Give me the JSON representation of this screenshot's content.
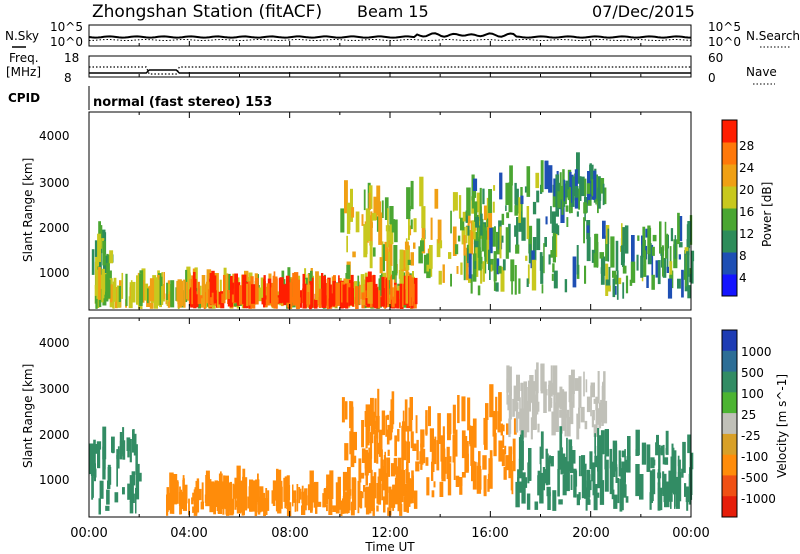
{
  "header": {
    "title": "Zhongshan Station (fitACF)",
    "beam": "Beam 15",
    "date": "07/Dec/2015"
  },
  "status_panels": {
    "noise_left_label": "N.Sky",
    "noise_left_ticks": [
      "10^5",
      "10^0"
    ],
    "noise_right_ticks": [
      "10^5",
      "10^0"
    ],
    "noise_right_label": "N.Search",
    "freq_label": "Freq.",
    "freq_unit": "[MHz]",
    "freq_ticks": [
      "18",
      "8"
    ],
    "nave_ticks": [
      "60",
      "0"
    ],
    "nave_label": "Nave",
    "cpid_label": "CPID",
    "cpid_text": "normal (fast stereo) 153"
  },
  "power_panel": {
    "ylabel": "Slant Range [km]",
    "yticks": [
      "4000",
      "3000",
      "2000",
      "1000"
    ],
    "colorbar_label": "Power [dB]",
    "colorbar_ticks": [
      "28",
      "24",
      "20",
      "16",
      "12",
      "8",
      "4"
    ],
    "colors": [
      "#1414ff",
      "#1e4fb4",
      "#2d8c5a",
      "#4aa632",
      "#c8c81e",
      "#f0a014",
      "#ff780a",
      "#ff1e00"
    ]
  },
  "velocity_panel": {
    "ylabel": "Slant Range [km]",
    "yticks": [
      "4000",
      "3000",
      "2000",
      "1000"
    ],
    "colorbar_label": "Velocity [m s^-1]",
    "colorbar_ticks": [
      "1000",
      "500",
      "100",
      "25",
      "-25",
      "-100",
      "-500",
      "-1000"
    ],
    "colors": [
      "#1e3cb4",
      "#2d6e96",
      "#328c64",
      "#4cb432",
      "#c0c0b8",
      "#d8a028",
      "#ff8c0a",
      "#f05014",
      "#e61e0a"
    ]
  },
  "xaxis": {
    "label": "Time UT",
    "ticks": [
      "00:00",
      "04:00",
      "08:00",
      "12:00",
      "16:00",
      "20:00",
      "00:00"
    ]
  },
  "chart_data": [
    {
      "type": "heatmap",
      "title": "Power",
      "xlabel": "Time UT",
      "ylabel": "Slant Range [km]",
      "x_range_hours": [
        0,
        24
      ],
      "y_range_km": [
        180,
        4600
      ],
      "colorbar": {
        "label": "Power [dB]",
        "range": [
          0,
          30
        ],
        "ticks": [
          4,
          8,
          12,
          16,
          20,
          24,
          28
        ]
      },
      "echo_regions": [
        {
          "t_start": 0.0,
          "t_end": 1.0,
          "r_min": 400,
          "r_max": 1600,
          "value": 14
        },
        {
          "t_start": 0.2,
          "t_end": 13.0,
          "r_min": 200,
          "r_max": 450,
          "value": 18
        },
        {
          "t_start": 4.0,
          "t_end": 13.0,
          "r_min": 200,
          "r_max": 350,
          "value": 28
        },
        {
          "t_start": 10.0,
          "t_end": 16.0,
          "r_min": 700,
          "r_max": 2500,
          "value": 18
        },
        {
          "t_start": 15.0,
          "t_end": 20.0,
          "r_min": 500,
          "r_max": 3000,
          "value": 12
        },
        {
          "t_start": 18.5,
          "t_end": 20.5,
          "r_min": 2300,
          "r_max": 2800,
          "value": 10
        },
        {
          "t_start": 20.0,
          "t_end": 24.0,
          "r_min": 400,
          "r_max": 1800,
          "value": 12
        }
      ]
    },
    {
      "type": "heatmap",
      "title": "Velocity",
      "xlabel": "Time UT",
      "ylabel": "Slant Range [km]",
      "x_range_hours": [
        0,
        24
      ],
      "y_range_km": [
        180,
        4600
      ],
      "colorbar": {
        "label": "Velocity [m s^-1]",
        "ticks": [
          1000,
          500,
          100,
          25,
          -25,
          -100,
          -500,
          -1000
        ]
      },
      "echo_regions": [
        {
          "t_start": 0.0,
          "t_end": 2.0,
          "r_min": 200,
          "r_max": 1700,
          "value": 150
        },
        {
          "t_start": 3.0,
          "t_end": 13.0,
          "r_min": 200,
          "r_max": 600,
          "value": -400
        },
        {
          "t_start": 10.0,
          "t_end": 17.0,
          "r_min": 600,
          "r_max": 2400,
          "value": -300
        },
        {
          "t_start": 16.5,
          "t_end": 20.5,
          "r_min": 1900,
          "r_max": 3000,
          "value": 0
        },
        {
          "t_start": 17.0,
          "t_end": 24.0,
          "r_min": 300,
          "r_max": 1600,
          "value": 150
        }
      ]
    }
  ]
}
